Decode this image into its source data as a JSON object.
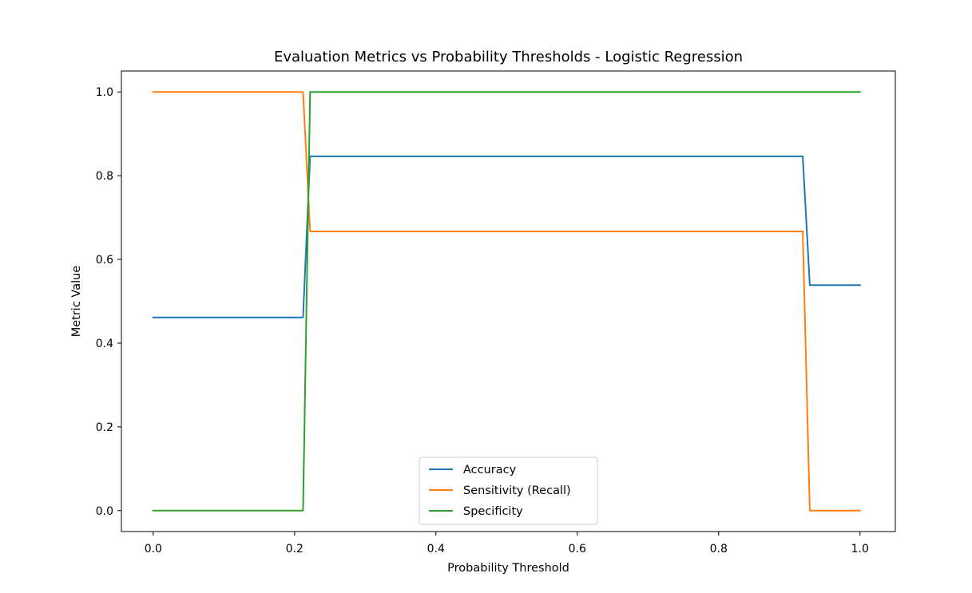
{
  "chart_data": {
    "type": "line",
    "title": "Evaluation Metrics vs Probability Thresholds - Logistic Regression",
    "xlabel": "Probability Threshold",
    "ylabel": "Metric Value",
    "xlim": [
      -0.045,
      1.05
    ],
    "ylim": [
      -0.05,
      1.05
    ],
    "xticks": [
      0.0,
      0.2,
      0.4,
      0.6,
      0.8,
      1.0
    ],
    "xtick_labels": [
      "0.0",
      "0.2",
      "0.4",
      "0.6",
      "0.8",
      "1.0"
    ],
    "yticks": [
      0.0,
      0.2,
      0.4,
      0.6,
      0.8,
      1.0
    ],
    "ytick_labels": [
      "0.0",
      "0.2",
      "0.4",
      "0.6",
      "0.8",
      "1.0"
    ],
    "grid": false,
    "legend_position": "bottom-center",
    "series": [
      {
        "name": "Accuracy",
        "color": "#1f77b4",
        "x": [
          0.0,
          0.212,
          0.222,
          0.919,
          0.929,
          1.0
        ],
        "y": [
          0.4615,
          0.4615,
          0.8462,
          0.8462,
          0.5385,
          0.5385
        ]
      },
      {
        "name": "Sensitivity (Recall)",
        "color": "#ff7f0e",
        "x": [
          0.0,
          0.212,
          0.222,
          0.919,
          0.929,
          1.0
        ],
        "y": [
          1.0,
          1.0,
          0.6667,
          0.6667,
          0.0,
          0.0
        ]
      },
      {
        "name": "Specificity",
        "color": "#2ca02c",
        "x": [
          0.0,
          0.212,
          0.222,
          1.0
        ],
        "y": [
          0.0,
          0.0,
          1.0,
          1.0
        ]
      }
    ]
  }
}
